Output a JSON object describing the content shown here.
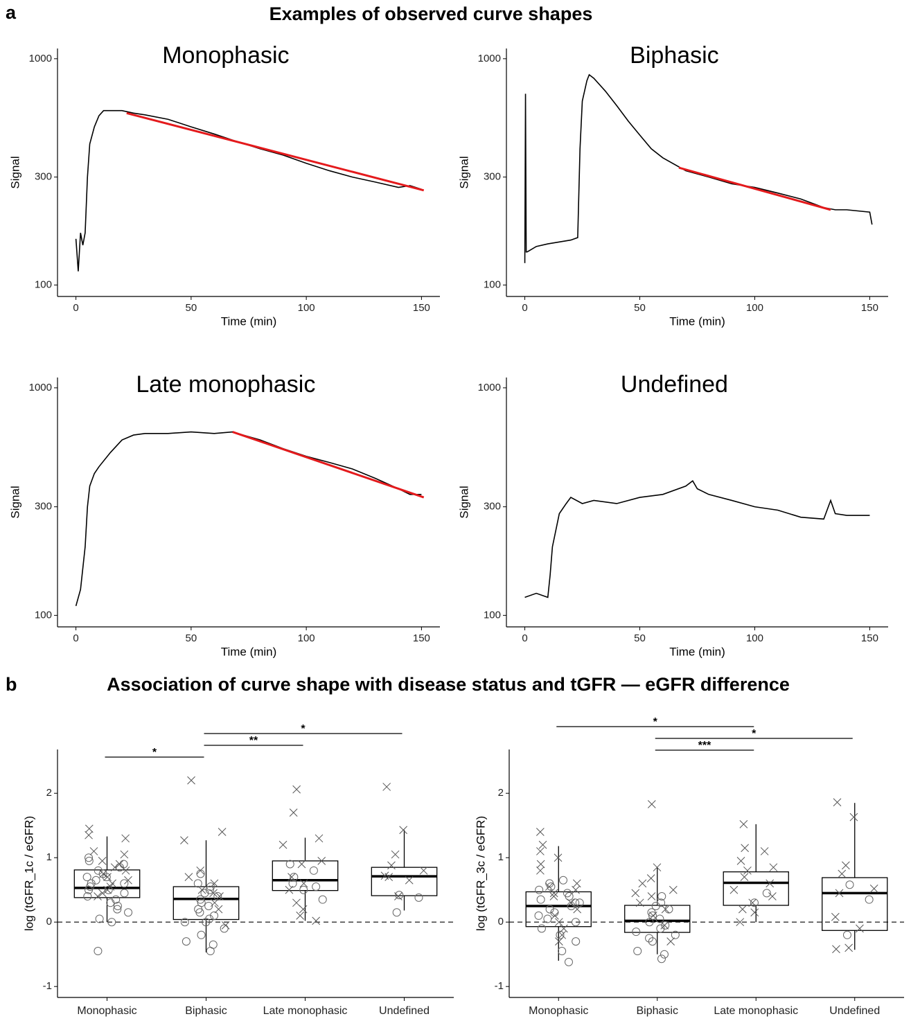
{
  "panels": [
    {
      "label": "a",
      "title": "Examples of observed curve shapes"
    },
    {
      "label": "b",
      "title": "Association of curve shape with disease status and tGFR — eGFR difference"
    }
  ],
  "chart_data": [
    {
      "type": "line",
      "title": "Monophasic",
      "xlabel": "Time (min)",
      "ylabel": "Signal",
      "log": true,
      "xlim": [
        -8,
        158
      ],
      "xticks": [
        0,
        50,
        100,
        150
      ],
      "ylim": [
        89,
        1110
      ],
      "yticks": [
        100,
        300,
        1000
      ],
      "series": [
        {
          "color": "#000000",
          "x": [
            0,
            1,
            2,
            3,
            4,
            5,
            6,
            8,
            10,
            12,
            15,
            20,
            25,
            30,
            40,
            50,
            60,
            70,
            80,
            90,
            100,
            110,
            120,
            130,
            140,
            145,
            150
          ],
          "values": [
            160,
            115,
            170,
            150,
            170,
            300,
            420,
            500,
            560,
            590,
            590,
            590,
            575,
            565,
            540,
            500,
            465,
            430,
            400,
            375,
            345,
            320,
            300,
            285,
            270,
            275,
            265
          ]
        },
        {
          "color": "#e41a1c",
          "x": [
            22,
            151
          ],
          "values": [
            575,
            262
          ]
        }
      ]
    },
    {
      "type": "line",
      "title": "Biphasic",
      "xlabel": "Time (min)",
      "ylabel": "Signal",
      "log": true,
      "xlim": [
        -8,
        158
      ],
      "xticks": [
        0,
        50,
        100,
        150
      ],
      "ylim": [
        89,
        1110
      ],
      "yticks": [
        100,
        300,
        1000
      ],
      "series": [
        {
          "color": "#000000",
          "x": [
            0,
            0.3,
            0.6,
            1,
            5,
            10,
            15,
            20,
            23,
            24,
            25,
            27,
            28,
            30,
            35,
            40,
            45,
            50,
            55,
            60,
            70,
            80,
            90,
            100,
            110,
            120,
            130,
            135,
            140,
            150,
            151
          ],
          "values": [
            125,
            700,
            140,
            140,
            148,
            152,
            155,
            158,
            162,
            400,
            650,
            800,
            850,
            820,
            720,
            620,
            530,
            460,
            400,
            365,
            320,
            300,
            280,
            270,
            255,
            240,
            220,
            215,
            215,
            210,
            185
          ]
        },
        {
          "color": "#e41a1c",
          "x": [
            67,
            133
          ],
          "values": [
            330,
            215
          ]
        }
      ]
    },
    {
      "type": "line",
      "title": "Late monophasic",
      "xlabel": "Time (min)",
      "ylabel": "Signal",
      "log": true,
      "xlim": [
        -8,
        158
      ],
      "xticks": [
        0,
        50,
        100,
        150
      ],
      "ylim": [
        89,
        1110
      ],
      "yticks": [
        100,
        300,
        1000
      ],
      "series": [
        {
          "color": "#000000",
          "x": [
            0,
            2,
            4,
            5,
            6,
            8,
            10,
            15,
            20,
            25,
            30,
            40,
            50,
            60,
            68,
            75,
            80,
            90,
            100,
            110,
            120,
            130,
            140,
            145,
            150
          ],
          "values": [
            110,
            130,
            200,
            300,
            370,
            420,
            450,
            520,
            590,
            620,
            630,
            630,
            640,
            630,
            640,
            610,
            590,
            540,
            500,
            470,
            440,
            400,
            360,
            340,
            340
          ]
        },
        {
          "color": "#e41a1c",
          "x": [
            68,
            151
          ],
          "values": [
            640,
            330
          ]
        }
      ]
    },
    {
      "type": "line",
      "title": "Undefined",
      "xlabel": "Time (min)",
      "ylabel": "Signal",
      "log": true,
      "xlim": [
        -8,
        158
      ],
      "xticks": [
        0,
        50,
        100,
        150
      ],
      "ylim": [
        89,
        1110
      ],
      "yticks": [
        100,
        300,
        1000
      ],
      "series": [
        {
          "color": "#000000",
          "x": [
            0,
            5,
            10,
            11,
            12,
            15,
            18,
            20,
            25,
            30,
            40,
            50,
            60,
            70,
            73,
            75,
            80,
            90,
            100,
            110,
            120,
            130,
            133,
            135,
            140,
            150
          ],
          "values": [
            120,
            125,
            120,
            150,
            200,
            280,
            310,
            330,
            310,
            320,
            310,
            330,
            340,
            370,
            390,
            360,
            340,
            320,
            300,
            290,
            270,
            265,
            320,
            280,
            275,
            275
          ]
        }
      ]
    },
    {
      "type": "box",
      "ylabel": "log (tGFR_1c / eGFR)",
      "categories": [
        "Monophasic",
        "Biphasic",
        "Late monophasic",
        "Undefined"
      ],
      "ylim": [
        -1.17,
        2.68
      ],
      "yticks": [
        -1,
        0,
        1,
        2
      ],
      "hline": 0,
      "boxes": [
        {
          "whislo": 0,
          "q1": 0.38,
          "med": 0.53,
          "q3": 0.81,
          "whishi": 1.33
        },
        {
          "whislo": -0.47,
          "q1": 0.04,
          "med": 0.36,
          "q3": 0.55,
          "whishi": 1.27
        },
        {
          "whislo": 0.02,
          "q1": 0.49,
          "med": 0.65,
          "q3": 0.95,
          "whishi": 1.31
        },
        {
          "whislo": 0.18,
          "q1": 0.41,
          "med": 0.71,
          "q3": 0.85,
          "whishi": 1.43
        }
      ],
      "circles": [
        [
          0.2,
          0.3,
          0.45,
          0.5,
          0.55,
          0.6,
          0.65,
          0.7,
          0.75,
          0.8,
          0.85,
          0.9,
          0.95,
          0.25,
          0.35,
          0.4,
          0.05,
          -0.45,
          0,
          0.15,
          1.0,
          0.6,
          0.5,
          0.7
        ],
        [
          -0.45,
          -0.35,
          -0.3,
          -0.2,
          -0.1,
          0,
          0.05,
          0.1,
          0.2,
          0.25,
          0.3,
          0.35,
          0.4,
          0.45,
          0.5,
          0.55,
          0.6,
          0.75,
          0.0,
          0.15
        ],
        [
          0.5,
          0.55,
          0.6,
          0.7,
          0.8,
          0.9,
          0.35
        ],
        [
          0.15,
          0.38,
          0.42
        ]
      ],
      "crosses": [
        [
          1.45,
          1.35,
          1.3,
          1.05,
          0.95,
          0.9,
          0.8,
          0.75,
          0.7,
          0.6,
          0.55,
          0.5,
          0.45,
          0.4,
          1.1,
          0.85,
          0.65
        ],
        [
          2.2,
          1.4,
          1.27,
          0.8,
          0.7,
          0.6,
          0.5,
          0.45,
          0.4,
          0.3,
          -0.05,
          0.2
        ],
        [
          2.06,
          1.7,
          1.3,
          1.2,
          0.95,
          0.9,
          0.7,
          0.6,
          0.5,
          0.3,
          0.2,
          0.1,
          0.02
        ],
        [
          2.1,
          1.43,
          1.05,
          0.88,
          0.8,
          0.7,
          0.72,
          0.65,
          0.4
        ]
      ],
      "comparisons": [
        {
          "pair": [
            0,
            1
          ],
          "label": "*"
        },
        {
          "pair": [
            1,
            2
          ],
          "label": "**"
        },
        {
          "pair": [
            1,
            3
          ],
          "label": "*"
        }
      ]
    },
    {
      "type": "box",
      "ylabel": "log (tGFR_3c / eGFR)",
      "categories": [
        "Monophasic",
        "Biphasic",
        "Late monophasic",
        "Undefined"
      ],
      "ylim": [
        -1.17,
        2.68
      ],
      "yticks": [
        -1,
        0,
        1,
        2
      ],
      "hline": 0,
      "boxes": [
        {
          "whislo": -0.6,
          "q1": -0.07,
          "med": 0.25,
          "q3": 0.47,
          "whishi": 1.18
        },
        {
          "whislo": -0.5,
          "q1": -0.16,
          "med": 0.02,
          "q3": 0.26,
          "whishi": 0.85
        },
        {
          "whislo": 0,
          "q1": 0.26,
          "med": 0.61,
          "q3": 0.78,
          "whishi": 1.52
        },
        {
          "whislo": -0.43,
          "q1": -0.13,
          "med": 0.45,
          "q3": 0.69,
          "whishi": 1.85
        }
      ],
      "circles": [
        [
          -0.62,
          -0.45,
          -0.3,
          -0.2,
          -0.1,
          0,
          0.05,
          0.1,
          0.15,
          0.2,
          0.25,
          0.3,
          0.35,
          0.4,
          0.45,
          0.5,
          0.55,
          0.6,
          0.65,
          0.3
        ],
        [
          -0.57,
          -0.5,
          -0.45,
          -0.3,
          -0.2,
          -0.15,
          -0.1,
          -0.05,
          0,
          0.05,
          0.1,
          0.15,
          0.2,
          0.25,
          0.3,
          0.4,
          -0.25
        ],
        [
          0.3,
          0.45
        ],
        [
          -0.2,
          0.35,
          0.58
        ]
      ],
      "crosses": [
        [
          1.4,
          1.2,
          1.1,
          1.0,
          0.9,
          0.8,
          0.6,
          0.5,
          0.4,
          0.3,
          0.2,
          0.1,
          0,
          -0.1,
          -0.2,
          -0.3,
          0.45,
          0.55
        ],
        [
          1.83,
          0.85,
          0.68,
          0.6,
          0.5,
          0.45,
          0.4,
          0.3,
          0.2,
          0.1,
          -0.05,
          -0.3
        ],
        [
          1.52,
          1.15,
          1.1,
          0.95,
          0.85,
          0.8,
          0.7,
          0.6,
          0.5,
          0.4,
          0.3,
          0.2,
          0.15,
          0.0
        ],
        [
          1.86,
          1.63,
          0.88,
          0.75,
          0.52,
          0.45,
          0.08,
          -0.1,
          -0.4,
          -0.42
        ]
      ],
      "comparisons": [
        {
          "pair": [
            1,
            2
          ],
          "label": "***"
        },
        {
          "pair": [
            1,
            3
          ],
          "label": "*"
        },
        {
          "pair": [
            0,
            2
          ],
          "label": "*"
        }
      ]
    }
  ]
}
